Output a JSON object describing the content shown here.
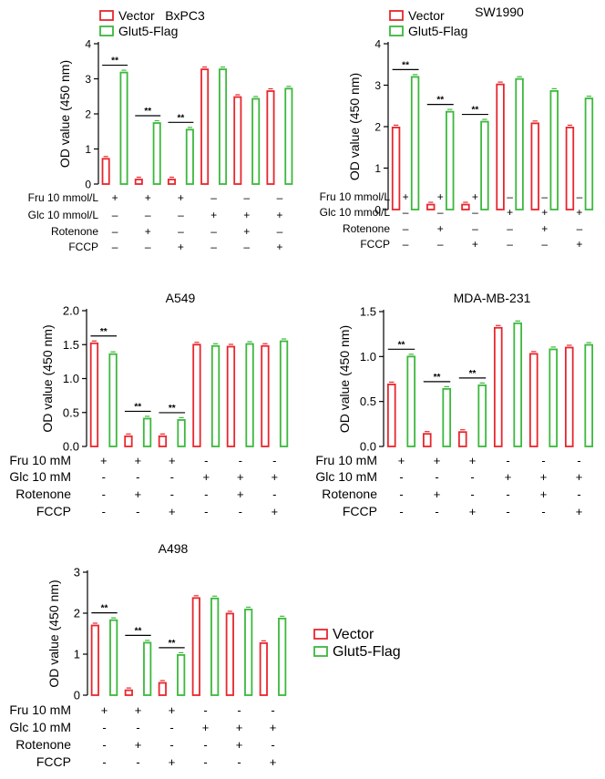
{
  "colors": {
    "vector": "#e8262d",
    "glut5": "#3bb83c",
    "axis": "#000000"
  },
  "chart_data": [
    {
      "type": "bar",
      "title": "BxPC3",
      "ylabel": "OD value (450 nm)",
      "ylim": [
        0,
        4
      ],
      "yticks": [
        "0",
        "1",
        "2",
        "3",
        "4"
      ],
      "legend": {
        "position": "top-left",
        "items": [
          "Vector",
          "Glut5-Flag"
        ]
      },
      "series": [
        {
          "name": "Vector",
          "values": [
            0.72,
            0.13,
            0.13,
            3.27,
            2.48,
            2.65
          ]
        },
        {
          "name": "Glut5-Flag",
          "values": [
            3.18,
            1.74,
            1.55,
            3.27,
            2.43,
            2.72
          ]
        }
      ],
      "significance": [
        "**",
        "**",
        "**"
      ],
      "conditions": [
        {
          "label": "Fru 10 mmol/L",
          "signs": [
            "+",
            "+",
            "+",
            "–",
            "–",
            "–"
          ]
        },
        {
          "label": "Glc 10 mmol/L",
          "signs": [
            "–",
            "–",
            "–",
            "+",
            "+",
            "+"
          ]
        },
        {
          "label": "Rotenone",
          "signs": [
            "–",
            "+",
            "–",
            "–",
            "+",
            "–"
          ]
        },
        {
          "label": "FCCP",
          "signs": [
            "–",
            "–",
            "+",
            "–",
            "–",
            "+"
          ]
        }
      ]
    },
    {
      "type": "bar",
      "title": "SW1990",
      "ylabel": "OD value (450 nm)",
      "ylim": [
        0,
        4
      ],
      "yticks": [
        "0",
        "1",
        "2",
        "3",
        "4"
      ],
      "legend": {
        "position": "top-left",
        "items": [
          "Vector",
          "Glut5-Flag"
        ]
      },
      "series": [
        {
          "name": "Vector",
          "values": [
            1.98,
            0.12,
            0.12,
            3.02,
            2.08,
            1.98
          ]
        },
        {
          "name": "Glut5-Flag",
          "values": [
            3.2,
            2.36,
            2.12,
            3.15,
            2.86,
            2.68
          ]
        }
      ],
      "significance": [
        "**",
        "**",
        "**"
      ],
      "conditions": [
        {
          "label": "Fru 10 mmol/L",
          "signs": [
            "+",
            "+",
            "+",
            "–",
            "–",
            "–"
          ]
        },
        {
          "label": "Glc 10 mmol/L",
          "signs": [
            "–",
            "–",
            "–",
            "+",
            "+",
            "+"
          ]
        },
        {
          "label": "Rotenone",
          "signs": [
            "–",
            "+",
            "–",
            "–",
            "+",
            "–"
          ]
        },
        {
          "label": "FCCP",
          "signs": [
            "–",
            "–",
            "+",
            "–",
            "–",
            "+"
          ]
        }
      ]
    },
    {
      "type": "bar",
      "title": "A549",
      "ylabel": "OD value (450 nm)",
      "ylim": [
        0,
        2
      ],
      "yticks": [
        "0.0",
        "0.5",
        "1.0",
        "1.5",
        "2.0"
      ],
      "series": [
        {
          "name": "Vector",
          "values": [
            1.52,
            0.15,
            0.15,
            1.5,
            1.47,
            1.48
          ]
        },
        {
          "name": "Glut5-Flag",
          "values": [
            1.36,
            0.41,
            0.39,
            1.48,
            1.51,
            1.55
          ]
        }
      ],
      "significance": [
        "**",
        "**",
        "**"
      ],
      "conditions": [
        {
          "label": "Fru 10 mM",
          "signs": [
            "+",
            "+",
            "+",
            "-",
            "-",
            "-"
          ]
        },
        {
          "label": "Glc 10 mM",
          "signs": [
            "-",
            "-",
            "-",
            "+",
            "+",
            "+"
          ]
        },
        {
          "label": "Rotenone",
          "signs": [
            "-",
            "+",
            "-",
            "-",
            "+",
            "-"
          ]
        },
        {
          "label": "FCCP",
          "signs": [
            "-",
            "-",
            "+",
            "-",
            "-",
            "+"
          ]
        }
      ]
    },
    {
      "type": "bar",
      "title": "MDA-MB-231",
      "ylabel": "OD value (450 nm)",
      "ylim": [
        0,
        1.5
      ],
      "yticks": [
        "0.0",
        "0.5",
        "1.0",
        "1.5"
      ],
      "series": [
        {
          "name": "Vector",
          "values": [
            0.69,
            0.14,
            0.16,
            1.32,
            1.03,
            1.1
          ]
        },
        {
          "name": "Glut5-Flag",
          "values": [
            1.0,
            0.64,
            0.68,
            1.37,
            1.08,
            1.13
          ]
        }
      ],
      "significance": [
        "**",
        "**",
        "**"
      ],
      "conditions": [
        {
          "label": "Fru 10 mM",
          "signs": [
            "+",
            "+",
            "+",
            "-",
            "-",
            "-"
          ]
        },
        {
          "label": "Glc 10 mM",
          "signs": [
            "-",
            "-",
            "-",
            "+",
            "+",
            "+"
          ]
        },
        {
          "label": "Rotenone",
          "signs": [
            "-",
            "+",
            "-",
            "-",
            "+",
            "-"
          ]
        },
        {
          "label": "FCCP",
          "signs": [
            "-",
            "-",
            "+",
            "-",
            "-",
            "+"
          ]
        }
      ]
    },
    {
      "type": "bar",
      "title": "A498",
      "ylabel": "OD value (450 nm)",
      "ylim": [
        0,
        3
      ],
      "yticks": [
        "0",
        "1",
        "2",
        "3"
      ],
      "legend": {
        "position": "right",
        "items": [
          "Vector",
          "Glut5-Flag"
        ]
      },
      "series": [
        {
          "name": "Vector",
          "values": [
            1.7,
            0.12,
            0.3,
            2.37,
            1.99,
            1.27
          ]
        },
        {
          "name": "Glut5-Flag",
          "values": [
            1.83,
            1.28,
            0.98,
            2.36,
            2.09,
            1.87
          ]
        }
      ],
      "significance": [
        "**",
        "**",
        "**"
      ],
      "conditions": [
        {
          "label": "Fru 10 mM",
          "signs": [
            "+",
            "+",
            "+",
            "-",
            "-",
            "-"
          ]
        },
        {
          "label": "Glc 10 mM",
          "signs": [
            "-",
            "-",
            "-",
            "+",
            "+",
            "+"
          ]
        },
        {
          "label": "Rotenone",
          "signs": [
            "-",
            "+",
            "-",
            "-",
            "+",
            "-"
          ]
        },
        {
          "label": "FCCP",
          "signs": [
            "-",
            "-",
            "+",
            "-",
            "-",
            "+"
          ]
        }
      ]
    }
  ]
}
